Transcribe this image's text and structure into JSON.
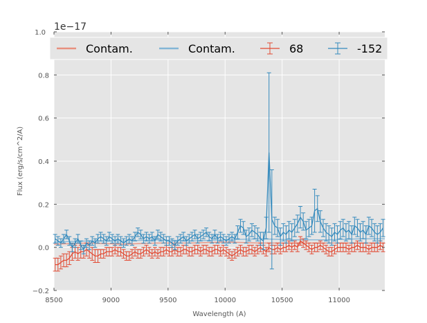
{
  "chart_data": {
    "type": "line",
    "title": "",
    "xlabel": "Wavelength (A)",
    "ylabel": "Flux (erg/s/cm^2/A)",
    "scale_label": "1e−17",
    "xlim": [
      8500,
      11400
    ],
    "ylim": [
      -0.2,
      1.0
    ],
    "xticks": [
      8500,
      9000,
      9500,
      10000,
      10500,
      11000
    ],
    "yticks": [
      -0.2,
      0.0,
      0.2,
      0.4,
      0.6,
      0.8,
      1.0
    ],
    "xtick_labels": [
      "8500",
      "9000",
      "9500",
      "10000",
      "10500",
      "11000"
    ],
    "ytick_labels": [
      "−0.2",
      "0.0",
      "0.2",
      "0.4",
      "0.6",
      "0.8",
      "1.0"
    ],
    "grid": true,
    "legend_position": "top",
    "colors": {
      "red": "#E24A33",
      "blue": "#348ABD",
      "red_light": "#e8907f",
      "blue_light": "#83b5d6",
      "background": "#E5E5E5"
    },
    "legend": [
      {
        "label": "Contam.",
        "kind": "line",
        "color": "#e8907f"
      },
      {
        "label": "Contam.",
        "kind": "line",
        "color": "#83b5d6"
      },
      {
        "label": "68",
        "kind": "errorbar",
        "color": "#E24A33"
      },
      {
        "label": "-152",
        "kind": "errorbar",
        "color": "#348ABD"
      }
    ],
    "series": [
      {
        "name": "Contam.",
        "kind": "line",
        "color": "#e8907f",
        "x": [
          8500,
          8800,
          9100,
          9400,
          9700,
          10000,
          10300,
          10600,
          10900,
          11200,
          11400
        ],
        "y": [
          0.015,
          0.02,
          0.015,
          0.02,
          0.02,
          0.025,
          0.02,
          0.02,
          0.02,
          0.02,
          0.02
        ]
      },
      {
        "name": "Contam.",
        "kind": "line",
        "color": "#83b5d6",
        "x": [
          8500,
          8800,
          9100,
          9400,
          9700,
          10000,
          10300,
          10600,
          10900,
          11200,
          11400
        ],
        "y": [
          0.025,
          0.03,
          0.03,
          0.035,
          0.03,
          0.035,
          0.04,
          0.035,
          0.035,
          0.04,
          0.04
        ]
      },
      {
        "name": "68",
        "kind": "errorbar",
        "color": "#E24A33",
        "x": [
          8510,
          8535,
          8560,
          8585,
          8610,
          8635,
          8660,
          8685,
          8710,
          8735,
          8760,
          8785,
          8810,
          8835,
          8860,
          8885,
          8910,
          8935,
          8960,
          8985,
          9010,
          9035,
          9060,
          9085,
          9110,
          9135,
          9160,
          9185,
          9210,
          9235,
          9260,
          9285,
          9310,
          9335,
          9360,
          9385,
          9410,
          9435,
          9460,
          9485,
          9510,
          9535,
          9560,
          9585,
          9610,
          9635,
          9660,
          9685,
          9710,
          9735,
          9760,
          9785,
          9810,
          9835,
          9860,
          9885,
          9910,
          9935,
          9960,
          9985,
          10010,
          10035,
          10060,
          10085,
          10110,
          10135,
          10160,
          10185,
          10210,
          10235,
          10260,
          10285,
          10310,
          10335,
          10360,
          10385,
          10410,
          10435,
          10460,
          10485,
          10510,
          10535,
          10560,
          10585,
          10610,
          10635,
          10660,
          10685,
          10710,
          10735,
          10760,
          10785,
          10810,
          10835,
          10860,
          10885,
          10910,
          10935,
          10960,
          10985,
          11010,
          11035,
          11060,
          11085,
          11110,
          11135,
          11160,
          11185,
          11210,
          11235,
          11260,
          11285,
          11310,
          11335,
          11360,
          11385
        ],
        "y": [
          -0.08,
          -0.08,
          -0.07,
          -0.06,
          -0.06,
          -0.05,
          -0.03,
          -0.02,
          -0.03,
          -0.02,
          -0.02,
          -0.01,
          -0.02,
          -0.03,
          -0.04,
          -0.04,
          -0.03,
          -0.03,
          -0.02,
          -0.02,
          -0.02,
          -0.01,
          -0.02,
          -0.02,
          -0.03,
          -0.04,
          -0.04,
          -0.03,
          -0.02,
          -0.03,
          -0.03,
          -0.02,
          -0.01,
          -0.02,
          -0.03,
          -0.02,
          -0.03,
          -0.02,
          -0.02,
          -0.01,
          -0.02,
          -0.02,
          -0.01,
          -0.02,
          -0.02,
          -0.01,
          -0.01,
          -0.02,
          -0.02,
          -0.01,
          -0.01,
          -0.02,
          -0.01,
          -0.01,
          -0.02,
          -0.02,
          -0.01,
          -0.01,
          -0.02,
          -0.01,
          -0.02,
          -0.03,
          -0.04,
          -0.03,
          -0.02,
          -0.01,
          -0.02,
          -0.02,
          -0.01,
          -0.01,
          -0.02,
          -0.01,
          0.0,
          -0.01,
          -0.02,
          0.0,
          -0.01,
          -0.01,
          0.0,
          -0.01,
          0.0,
          0.0,
          0.01,
          0.0,
          0.01,
          0.0,
          0.03,
          0.02,
          0.01,
          0.0,
          -0.01,
          0.0,
          0.0,
          0.01,
          0.0,
          -0.01,
          -0.02,
          -0.02,
          -0.01,
          0.0,
          0.0,
          0.0,
          0.0,
          -0.01,
          0.0,
          0.0,
          0.01,
          0.0,
          0.0,
          0.0,
          -0.01,
          0.0,
          0.0,
          0.0,
          0.01,
          0.0
        ],
        "err": [
          0.03,
          0.03,
          0.03,
          0.03,
          0.03,
          0.03,
          0.03,
          0.03,
          0.03,
          0.03,
          0.03,
          0.03,
          0.03,
          0.03,
          0.03,
          0.03,
          0.02,
          0.02,
          0.02,
          0.02,
          0.02,
          0.02,
          0.02,
          0.02,
          0.02,
          0.02,
          0.02,
          0.02,
          0.02,
          0.02,
          0.02,
          0.02,
          0.02,
          0.02,
          0.02,
          0.02,
          0.02,
          0.02,
          0.02,
          0.02,
          0.02,
          0.02,
          0.02,
          0.02,
          0.02,
          0.02,
          0.02,
          0.02,
          0.02,
          0.02,
          0.02,
          0.02,
          0.02,
          0.02,
          0.02,
          0.02,
          0.02,
          0.02,
          0.02,
          0.02,
          0.02,
          0.02,
          0.02,
          0.02,
          0.02,
          0.02,
          0.02,
          0.02,
          0.02,
          0.02,
          0.02,
          0.02,
          0.02,
          0.02,
          0.02,
          0.02,
          0.02,
          0.02,
          0.02,
          0.02,
          0.02,
          0.02,
          0.02,
          0.02,
          0.02,
          0.02,
          0.02,
          0.02,
          0.02,
          0.02,
          0.02,
          0.02,
          0.02,
          0.02,
          0.02,
          0.02,
          0.02,
          0.02,
          0.02,
          0.02,
          0.02,
          0.02,
          0.02,
          0.02,
          0.02,
          0.02,
          0.02,
          0.02,
          0.02,
          0.02,
          0.02,
          0.02,
          0.02,
          0.02,
          0.02,
          0.02
        ]
      },
      {
        "name": "-152",
        "kind": "errorbar",
        "color": "#348ABD",
        "x": [
          8510,
          8535,
          8560,
          8585,
          8610,
          8635,
          8660,
          8685,
          8710,
          8735,
          8760,
          8785,
          8810,
          8835,
          8860,
          8885,
          8910,
          8935,
          8960,
          8985,
          9010,
          9035,
          9060,
          9085,
          9110,
          9135,
          9160,
          9185,
          9210,
          9235,
          9260,
          9285,
          9310,
          9335,
          9360,
          9385,
          9410,
          9435,
          9460,
          9485,
          9510,
          9535,
          9560,
          9585,
          9610,
          9635,
          9660,
          9685,
          9710,
          9735,
          9760,
          9785,
          9810,
          9835,
          9860,
          9885,
          9910,
          9935,
          9960,
          9985,
          10010,
          10035,
          10060,
          10085,
          10110,
          10135,
          10160,
          10185,
          10210,
          10235,
          10260,
          10285,
          10310,
          10335,
          10360,
          10385,
          10410,
          10435,
          10460,
          10485,
          10510,
          10535,
          10560,
          10585,
          10610,
          10635,
          10660,
          10685,
          10710,
          10735,
          10760,
          10785,
          10810,
          10835,
          10860,
          10885,
          10910,
          10935,
          10960,
          10985,
          11010,
          11035,
          11060,
          11085,
          11110,
          11135,
          11160,
          11185,
          11210,
          11235,
          11260,
          11285,
          11310,
          11335,
          11360,
          11385
        ],
        "y": [
          0.04,
          0.03,
          0.02,
          0.04,
          0.06,
          0.03,
          0.0,
          0.02,
          0.04,
          0.01,
          -0.01,
          0.02,
          0.01,
          0.03,
          0.02,
          0.04,
          0.05,
          0.04,
          0.03,
          0.05,
          0.04,
          0.03,
          0.04,
          0.03,
          0.02,
          0.03,
          0.04,
          0.03,
          0.05,
          0.07,
          0.06,
          0.04,
          0.05,
          0.04,
          0.05,
          0.03,
          0.06,
          0.05,
          0.04,
          0.03,
          0.03,
          0.02,
          0.01,
          0.03,
          0.04,
          0.05,
          0.03,
          0.04,
          0.05,
          0.06,
          0.04,
          0.05,
          0.06,
          0.07,
          0.05,
          0.04,
          0.06,
          0.04,
          0.05,
          0.04,
          0.03,
          0.04,
          0.05,
          0.04,
          0.07,
          0.1,
          0.09,
          0.05,
          0.06,
          0.08,
          0.07,
          0.06,
          0.04,
          0.03,
          0.09,
          0.44,
          0.13,
          0.1,
          0.09,
          0.05,
          0.07,
          0.06,
          0.08,
          0.07,
          0.09,
          0.11,
          0.14,
          0.12,
          0.08,
          0.09,
          0.1,
          0.17,
          0.18,
          0.12,
          0.09,
          0.07,
          0.06,
          0.05,
          0.07,
          0.06,
          0.08,
          0.09,
          0.07,
          0.08,
          0.06,
          0.1,
          0.09,
          0.07,
          0.08,
          0.06,
          0.1,
          0.09,
          0.07,
          0.06,
          0.07,
          0.09
        ],
        "err": [
          0.02,
          0.02,
          0.02,
          0.02,
          0.02,
          0.02,
          0.02,
          0.02,
          0.02,
          0.02,
          0.02,
          0.02,
          0.02,
          0.02,
          0.02,
          0.02,
          0.02,
          0.02,
          0.02,
          0.02,
          0.02,
          0.02,
          0.02,
          0.02,
          0.02,
          0.02,
          0.02,
          0.02,
          0.02,
          0.02,
          0.02,
          0.02,
          0.02,
          0.02,
          0.02,
          0.02,
          0.02,
          0.02,
          0.02,
          0.02,
          0.02,
          0.02,
          0.02,
          0.02,
          0.02,
          0.02,
          0.02,
          0.02,
          0.02,
          0.02,
          0.02,
          0.02,
          0.02,
          0.02,
          0.02,
          0.02,
          0.02,
          0.02,
          0.02,
          0.02,
          0.02,
          0.02,
          0.02,
          0.02,
          0.03,
          0.03,
          0.03,
          0.03,
          0.03,
          0.03,
          0.03,
          0.03,
          0.03,
          0.04,
          0.05,
          0.37,
          0.23,
          0.04,
          0.04,
          0.04,
          0.04,
          0.04,
          0.04,
          0.04,
          0.04,
          0.04,
          0.05,
          0.04,
          0.04,
          0.04,
          0.04,
          0.1,
          0.06,
          0.05,
          0.04,
          0.04,
          0.04,
          0.04,
          0.04,
          0.04,
          0.04,
          0.04,
          0.04,
          0.04,
          0.04,
          0.04,
          0.04,
          0.04,
          0.04,
          0.04,
          0.04,
          0.04,
          0.04,
          0.04,
          0.04,
          0.04
        ]
      }
    ]
  }
}
